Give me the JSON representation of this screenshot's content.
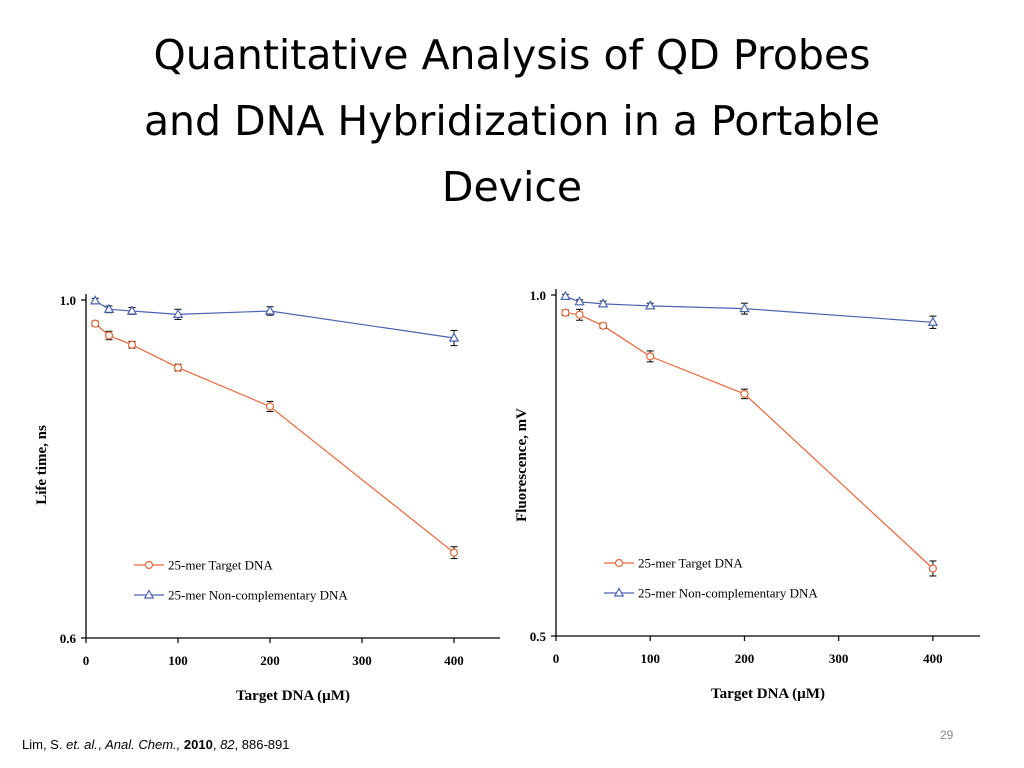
{
  "slide": {
    "title_lines": [
      "Quantitative Analysis of QD Probes",
      "and DNA Hybridization in a Portable",
      "Device"
    ],
    "citation": {
      "author": "Lim, S.",
      "etal": "et. al.",
      "journal": "Anal. Chem.,",
      "year": "2010",
      "volume": "82",
      "pages": "886-891"
    },
    "page_number": "29"
  },
  "chart_data": [
    {
      "type": "line",
      "xlabel": "Target DNA (µM)",
      "ylabel": "Life time, ns",
      "xlim": [
        0,
        450
      ],
      "ylim": [
        0.6,
        1.0
      ],
      "x_ticks": [
        0,
        100,
        200,
        300,
        400
      ],
      "y_ticks": [
        0.6,
        1.0
      ],
      "y_tick_labels": [
        "0.6",
        "1.0"
      ],
      "legend_position": "bottom-left",
      "series": [
        {
          "name": "25-mer Target DNA",
          "marker": "circle",
          "color": "#e8673a",
          "x": [
            10,
            25,
            50,
            100,
            200,
            400
          ],
          "y": [
            0.972,
            0.958,
            0.947,
            0.92,
            0.874,
            0.701
          ],
          "error": [
            0.003,
            0.005,
            0.004,
            0.004,
            0.006,
            0.007
          ]
        },
        {
          "name": "25-mer Non-complementary DNA",
          "marker": "triangle",
          "color": "#4a64b0",
          "x": [
            10,
            25,
            50,
            100,
            200,
            400
          ],
          "y": [
            0.999,
            0.989,
            0.987,
            0.983,
            0.987,
            0.955
          ],
          "error": [
            0.003,
            0.004,
            0.004,
            0.006,
            0.005,
            0.009
          ]
        }
      ]
    },
    {
      "type": "line",
      "xlabel": "Target DNA (µM)",
      "ylabel": "Fluorescence, mV",
      "xlim": [
        0,
        450
      ],
      "ylim": [
        0.5,
        1.0
      ],
      "x_ticks": [
        0,
        100,
        200,
        300,
        400
      ],
      "y_ticks": [
        0.5,
        1.0
      ],
      "y_tick_labels": [
        "0.5",
        "1.0"
      ],
      "legend_position": "bottom-left",
      "series": [
        {
          "name": "25-mer Target DNA",
          "marker": "circle",
          "color": "#e8673a",
          "x": [
            10,
            25,
            50,
            100,
            200,
            400
          ],
          "y": [
            0.974,
            0.971,
            0.955,
            0.91,
            0.855,
            0.599
          ],
          "error": [
            0.004,
            0.008,
            0.004,
            0.008,
            0.007,
            0.011
          ]
        },
        {
          "name": "25-mer Non-complementary DNA",
          "marker": "triangle",
          "color": "#4a64b0",
          "x": [
            10,
            25,
            50,
            100,
            200,
            400
          ],
          "y": [
            0.998,
            0.99,
            0.987,
            0.984,
            0.98,
            0.96
          ],
          "error": [
            0.003,
            0.003,
            0.004,
            0.004,
            0.008,
            0.009
          ]
        }
      ]
    }
  ]
}
